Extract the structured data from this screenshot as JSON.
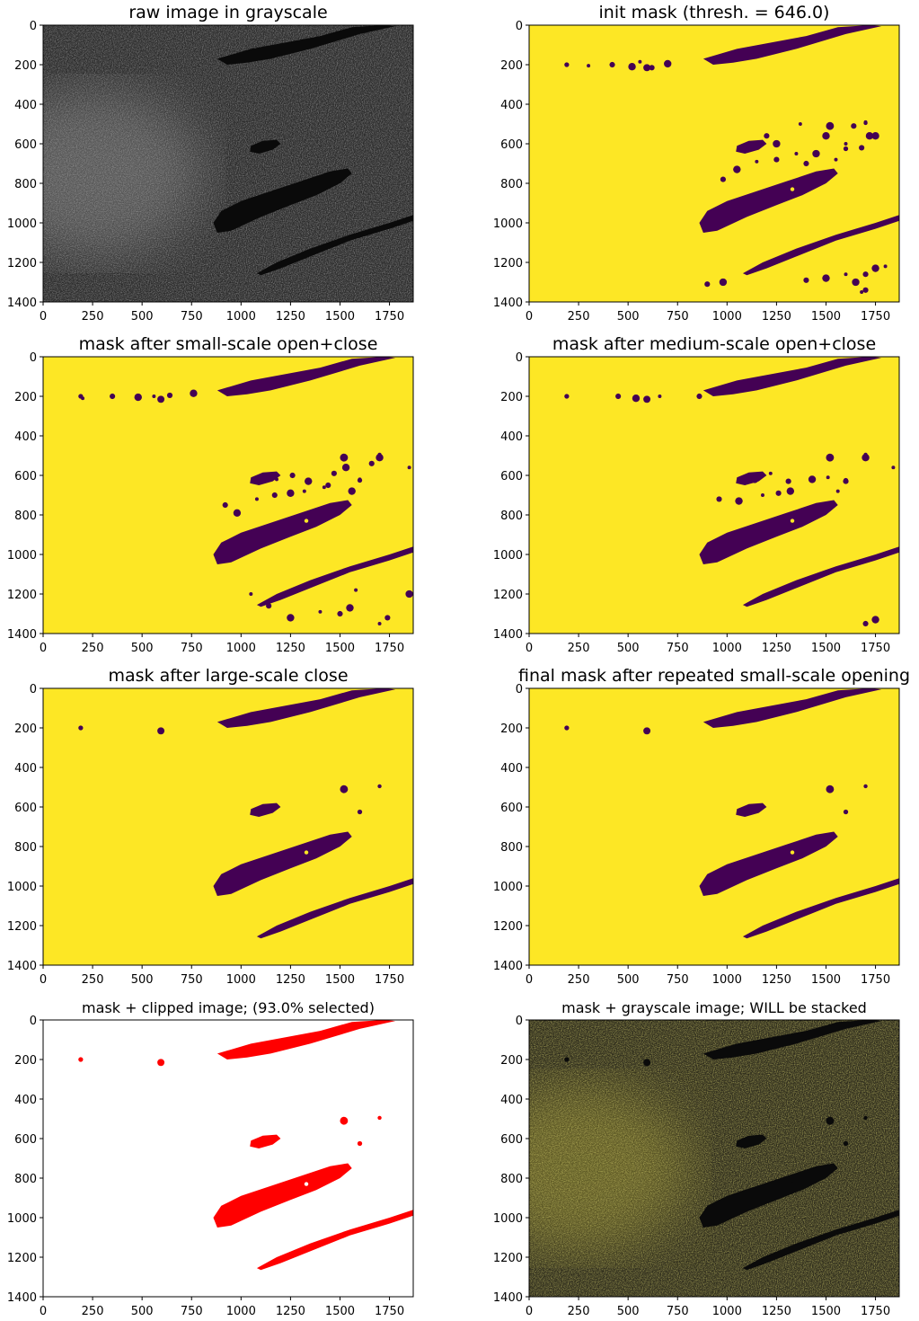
{
  "chart_data": [
    {
      "type": "image",
      "title": "raw image in grayscale",
      "xlim": [
        0,
        1870
      ],
      "ylim": [
        1400,
        0
      ],
      "xticks": [
        0,
        250,
        500,
        750,
        1000,
        1250,
        1500,
        1750
      ],
      "yticks": [
        0,
        200,
        400,
        600,
        800,
        1000,
        1200,
        1400
      ],
      "colormap": "gray"
    },
    {
      "type": "image",
      "title": "init mask (thresh. = 646.0)",
      "xlim": [
        0,
        1870
      ],
      "ylim": [
        1400,
        0
      ],
      "xticks": [
        0,
        250,
        500,
        750,
        1000,
        1250,
        1500,
        1750
      ],
      "yticks": [
        0,
        200,
        400,
        600,
        800,
        1000,
        1200,
        1400
      ],
      "colormap": "viridis"
    },
    {
      "type": "image",
      "title": "mask after small-scale open+close",
      "xlim": [
        0,
        1870
      ],
      "ylim": [
        1400,
        0
      ],
      "xticks": [
        0,
        250,
        500,
        750,
        1000,
        1250,
        1500,
        1750
      ],
      "yticks": [
        0,
        200,
        400,
        600,
        800,
        1000,
        1200,
        1400
      ],
      "colormap": "viridis"
    },
    {
      "type": "image",
      "title": "mask after medium-scale open+close",
      "xlim": [
        0,
        1870
      ],
      "ylim": [
        1400,
        0
      ],
      "xticks": [
        0,
        250,
        500,
        750,
        1000,
        1250,
        1500,
        1750
      ],
      "yticks": [
        0,
        200,
        400,
        600,
        800,
        1000,
        1200,
        1400
      ],
      "colormap": "viridis"
    },
    {
      "type": "image",
      "title": "mask after large-scale close",
      "xlim": [
        0,
        1870
      ],
      "ylim": [
        1400,
        0
      ],
      "xticks": [
        0,
        250,
        500,
        750,
        1000,
        1250,
        1500,
        1750
      ],
      "yticks": [
        0,
        200,
        400,
        600,
        800,
        1000,
        1200,
        1400
      ],
      "colormap": "viridis"
    },
    {
      "type": "image",
      "title": "final mask after repeated small-scale opening",
      "xlim": [
        0,
        1870
      ],
      "ylim": [
        1400,
        0
      ],
      "xticks": [
        0,
        250,
        500,
        750,
        1000,
        1250,
        1500,
        1750
      ],
      "yticks": [
        0,
        200,
        400,
        600,
        800,
        1000,
        1200,
        1400
      ],
      "colormap": "viridis"
    },
    {
      "type": "image",
      "title": "mask + clipped image; (93.0% selected)",
      "xlim": [
        0,
        1870
      ],
      "ylim": [
        1400,
        0
      ],
      "xticks": [
        0,
        250,
        500,
        750,
        1000,
        1250,
        1500,
        1750
      ],
      "yticks": [
        0,
        200,
        400,
        600,
        800,
        1000,
        1200,
        1400
      ],
      "colormap": "white-red"
    },
    {
      "type": "image",
      "title": "mask + grayscale image; WILL be stacked",
      "xlim": [
        0,
        1870
      ],
      "ylim": [
        1400,
        0
      ],
      "xticks": [
        0,
        250,
        500,
        750,
        1000,
        1250,
        1500,
        1750
      ],
      "yticks": [
        0,
        200,
        400,
        600,
        800,
        1000,
        1200,
        1400
      ],
      "colormap": "yellow-overlay"
    }
  ],
  "colors": {
    "viridis_high": "#fde725",
    "viridis_low": "#440154",
    "clip_fill": "#ff0000",
    "clip_bg": "#ffffff",
    "gray_bg": "#2b2b2b",
    "overlay_bg": "#2e2c1c"
  },
  "regions": {
    "vessel_top": [
      [
        880,
        170
      ],
      [
        1050,
        120
      ],
      [
        1400,
        55
      ],
      [
        1560,
        10
      ],
      [
        1720,
        0
      ],
      [
        1780,
        5
      ],
      [
        1600,
        45
      ],
      [
        1350,
        120
      ],
      [
        1150,
        170
      ],
      [
        1030,
        190
      ],
      [
        930,
        200
      ]
    ],
    "vessel_center": [
      [
        860,
        1000
      ],
      [
        900,
        940
      ],
      [
        1000,
        890
      ],
      [
        1150,
        840
      ],
      [
        1300,
        790
      ],
      [
        1450,
        740
      ],
      [
        1540,
        725
      ],
      [
        1560,
        750
      ],
      [
        1500,
        800
      ],
      [
        1380,
        860
      ],
      [
        1250,
        910
      ],
      [
        1100,
        970
      ],
      [
        950,
        1040
      ],
      [
        880,
        1050
      ]
    ],
    "vessel_bottom": [
      [
        1080,
        1255
      ],
      [
        1180,
        1200
      ],
      [
        1350,
        1130
      ],
      [
        1550,
        1060
      ],
      [
        1750,
        1000
      ],
      [
        1870,
        960
      ],
      [
        1870,
        990
      ],
      [
        1750,
        1030
      ],
      [
        1550,
        1090
      ],
      [
        1350,
        1170
      ],
      [
        1200,
        1230
      ],
      [
        1100,
        1265
      ]
    ],
    "blob_mid": [
      [
        1050,
        610
      ],
      [
        1110,
        585
      ],
      [
        1180,
        580
      ],
      [
        1200,
        600
      ],
      [
        1160,
        630
      ],
      [
        1090,
        650
      ],
      [
        1045,
        640
      ]
    ],
    "small_blobs": [
      [
        190,
        200,
        12
      ],
      [
        595,
        215,
        18
      ],
      [
        1520,
        510,
        20
      ],
      [
        1700,
        495,
        10
      ],
      [
        1600,
        625,
        12
      ],
      [
        1330,
        830,
        10
      ]
    ],
    "init_specks": [
      [
        300,
        205
      ],
      [
        420,
        200
      ],
      [
        520,
        210
      ],
      [
        560,
        185
      ],
      [
        620,
        215
      ],
      [
        700,
        195
      ],
      [
        1100,
        630
      ],
      [
        1200,
        560
      ],
      [
        1250,
        600
      ],
      [
        1350,
        650
      ],
      [
        1400,
        700
      ],
      [
        1500,
        560
      ],
      [
        1600,
        600
      ],
      [
        1680,
        620
      ],
      [
        1750,
        560
      ],
      [
        1700,
        490
      ],
      [
        980,
        780
      ],
      [
        1050,
        730
      ],
      [
        1150,
        690
      ],
      [
        1250,
        680
      ],
      [
        1450,
        650
      ],
      [
        1550,
        680
      ],
      [
        1400,
        1290
      ],
      [
        1500,
        1280
      ],
      [
        1600,
        1260
      ],
      [
        1700,
        1260
      ],
      [
        1750,
        1230
      ],
      [
        1800,
        1220
      ],
      [
        900,
        1310
      ],
      [
        980,
        1300
      ],
      [
        1680,
        1350
      ],
      [
        1700,
        1340
      ],
      [
        1650,
        1300
      ],
      [
        1370,
        500
      ],
      [
        1640,
        510
      ],
      [
        1720,
        560
      ]
    ],
    "small_specks": [
      [
        200,
        210
      ],
      [
        350,
        200
      ],
      [
        480,
        205
      ],
      [
        560,
        200
      ],
      [
        640,
        195
      ],
      [
        760,
        185
      ],
      [
        1180,
        620
      ],
      [
        1260,
        600
      ],
      [
        1340,
        630
      ],
      [
        1420,
        660
      ],
      [
        1470,
        590
      ],
      [
        1530,
        560
      ],
      [
        1600,
        620
      ],
      [
        1660,
        540
      ],
      [
        1700,
        510
      ],
      [
        1850,
        560
      ],
      [
        920,
        750
      ],
      [
        980,
        790
      ],
      [
        1080,
        720
      ],
      [
        1170,
        700
      ],
      [
        1250,
        690
      ],
      [
        1320,
        680
      ],
      [
        1440,
        650
      ],
      [
        1560,
        680
      ],
      [
        1050,
        1200
      ],
      [
        1140,
        1260
      ],
      [
        1250,
        1320
      ],
      [
        1400,
        1290
      ],
      [
        1500,
        1300
      ],
      [
        1550,
        1270
      ],
      [
        1700,
        1350
      ],
      [
        1740,
        1320
      ],
      [
        1850,
        1200
      ],
      [
        1580,
        1180
      ]
    ],
    "medium_specks": [
      [
        190,
        200
      ],
      [
        450,
        200
      ],
      [
        540,
        210
      ],
      [
        660,
        200
      ],
      [
        860,
        200
      ],
      [
        1140,
        620
      ],
      [
        1220,
        590
      ],
      [
        1310,
        630
      ],
      [
        1430,
        620
      ],
      [
        1510,
        610
      ],
      [
        1600,
        630
      ],
      [
        1700,
        510
      ],
      [
        1840,
        560
      ],
      [
        960,
        720
      ],
      [
        1060,
        730
      ],
      [
        1180,
        700
      ],
      [
        1260,
        690
      ],
      [
        1320,
        680
      ],
      [
        1560,
        680
      ],
      [
        1700,
        1350
      ],
      [
        1750,
        1330
      ]
    ]
  }
}
